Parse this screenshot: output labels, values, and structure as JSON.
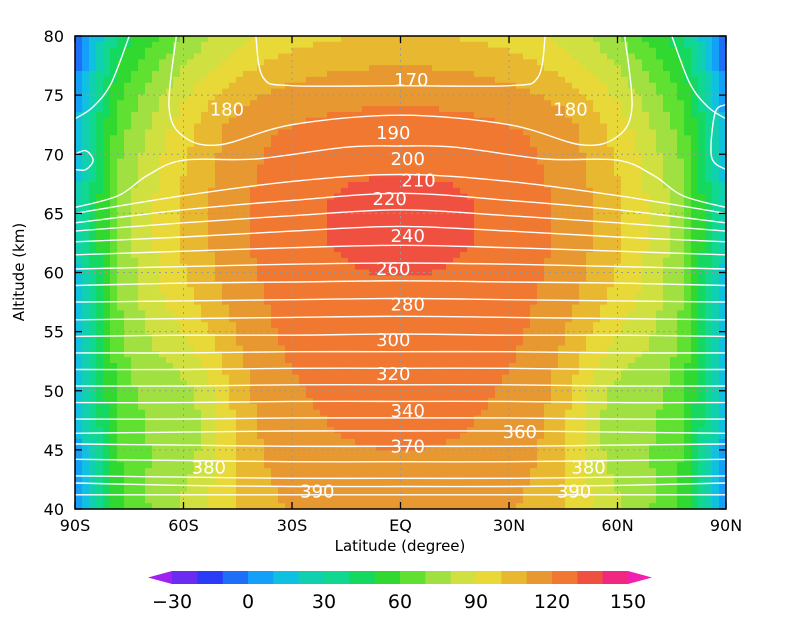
{
  "chart_data": {
    "type": "heatmap",
    "title": "",
    "xlabel": "Latitude (degree)",
    "ylabel": "Altitude (km)",
    "xlim": [
      -90,
      90
    ],
    "ylim": [
      40,
      80
    ],
    "x_ticks": [
      {
        "value": -90,
        "label": "90S"
      },
      {
        "value": -60,
        "label": "60S"
      },
      {
        "value": -30,
        "label": "30S"
      },
      {
        "value": 0,
        "label": "EQ"
      },
      {
        "value": 30,
        "label": "30N"
      },
      {
        "value": 60,
        "label": "60N"
      },
      {
        "value": 90,
        "label": "90N"
      }
    ],
    "y_ticks": [
      {
        "value": 40,
        "label": "40"
      },
      {
        "value": 45,
        "label": "45"
      },
      {
        "value": 50,
        "label": "50"
      },
      {
        "value": 55,
        "label": "55"
      },
      {
        "value": 60,
        "label": "60"
      },
      {
        "value": 65,
        "label": "65"
      },
      {
        "value": 70,
        "label": "70"
      },
      {
        "value": 75,
        "label": "75"
      },
      {
        "value": 80,
        "label": "80"
      }
    ],
    "grid": true,
    "colorbar": {
      "levels": [
        -30,
        -20,
        -10,
        0,
        10,
        20,
        30,
        40,
        50,
        60,
        70,
        80,
        90,
        100,
        110,
        120,
        130,
        140,
        150
      ],
      "colors": [
        "#a020f0",
        "#6a2cf0",
        "#2a3cf8",
        "#1e6ef8",
        "#14a0f8",
        "#10c0e0",
        "#10d0b0",
        "#10d890",
        "#14d860",
        "#30d830",
        "#60e030",
        "#a0e040",
        "#d0e040",
        "#e8d838",
        "#e8b830",
        "#e89830",
        "#f07830",
        "#f05040",
        "#f02880",
        "#f020b0"
      ],
      "tick_labels": [
        {
          "value": -30,
          "label": "−30"
        },
        {
          "value": 0,
          "label": "0"
        },
        {
          "value": 30,
          "label": "30"
        },
        {
          "value": 60,
          "label": "60"
        },
        {
          "value": 90,
          "label": "90"
        },
        {
          "value": 120,
          "label": "120"
        },
        {
          "value": 150,
          "label": "150"
        }
      ],
      "placement": "bottom"
    },
    "contour_lines": {
      "color": "#ffffff",
      "series": [
        {
          "level": 170,
          "label": "170",
          "points": [
            [
              -40,
              80
            ],
            [
              -38,
              76.5
            ],
            [
              -30,
              75.8
            ],
            [
              0,
              75.8
            ],
            [
              30,
              75.8
            ],
            [
              38,
              76.5
            ],
            [
              40,
              80
            ]
          ]
        },
        {
          "level": 180,
          "label": "180",
          "points": [
            [
              -62,
              80
            ],
            [
              -64,
              74
            ],
            [
              -60,
              71.5
            ],
            [
              -50,
              70.8
            ],
            [
              -30,
              72.5
            ],
            [
              0,
              73.3
            ],
            [
              30,
              72.5
            ],
            [
              50,
              70.8
            ],
            [
              60,
              71.5
            ],
            [
              64,
              74
            ],
            [
              62,
              80
            ]
          ]
        },
        {
          "level": 190,
          "label": "190",
          "points": [
            [
              -90,
              70
            ],
            [
              -87,
              70.3
            ],
            [
              -85,
              69.5
            ],
            [
              -87,
              68.7
            ],
            [
              -90,
              68.7
            ]
          ]
        },
        {
          "level": 190,
          "label": "",
          "points": [
            [
              -90,
              65.5
            ],
            [
              -78,
              66.5
            ],
            [
              -70,
              68.2
            ],
            [
              -60,
              69.5
            ],
            [
              -40,
              69.6
            ],
            [
              -15,
              70.6
            ],
            [
              0,
              70.7
            ],
            [
              15,
              70.6
            ],
            [
              40,
              69.6
            ],
            [
              60,
              69.5
            ],
            [
              70,
              68.2
            ],
            [
              78,
              66.5
            ],
            [
              90,
              65.5
            ]
          ]
        },
        {
          "level": 190,
          "label": "",
          "points": [
            [
              90,
              68.7
            ],
            [
              86,
              69.8
            ],
            [
              87,
              73.5
            ],
            [
              90,
              74.2
            ]
          ]
        },
        {
          "level": 195,
          "label": "",
          "points": [
            [
              -75,
              80
            ],
            [
              -80,
              76
            ],
            [
              -85,
              74
            ],
            [
              -90,
              73
            ]
          ]
        },
        {
          "level": 195,
          "label": "",
          "points": [
            [
              75,
              80
            ],
            [
              80,
              76
            ],
            [
              85,
              74
            ],
            [
              90,
              73
            ]
          ]
        },
        {
          "level": 200,
          "label": "200",
          "points": [
            [
              -90,
              65
            ],
            [
              -60,
              66.5
            ],
            [
              -30,
              67.7
            ],
            [
              0,
              68.3
            ],
            [
              30,
              67.7
            ],
            [
              60,
              66.5
            ],
            [
              90,
              65
            ]
          ]
        },
        {
          "level": 210,
          "label": "210",
          "points": [
            [
              -90,
              64.2
            ],
            [
              -60,
              65.3
            ],
            [
              -30,
              66.1
            ],
            [
              0,
              66.7
            ],
            [
              30,
              66.1
            ],
            [
              60,
              65.3
            ],
            [
              90,
              64.2
            ]
          ]
        },
        {
          "level": 220,
          "label": "220",
          "points": [
            [
              -90,
              63.5
            ],
            [
              -60,
              64.2
            ],
            [
              -30,
              64.8
            ],
            [
              0,
              65.3
            ],
            [
              30,
              64.8
            ],
            [
              60,
              64.2
            ],
            [
              90,
              63.5
            ]
          ]
        },
        {
          "level": 230,
          "label": "",
          "points": [
            [
              -90,
              62.6
            ],
            [
              -60,
              63
            ],
            [
              -30,
              63.5
            ],
            [
              0,
              63.9
            ],
            [
              30,
              63.5
            ],
            [
              60,
              63
            ],
            [
              90,
              62.6
            ]
          ]
        },
        {
          "level": 240,
          "label": "240",
          "points": [
            [
              -90,
              61.5
            ],
            [
              -60,
              61.8
            ],
            [
              -30,
              62.1
            ],
            [
              0,
              62.3
            ],
            [
              30,
              62.1
            ],
            [
              60,
              61.8
            ],
            [
              90,
              61.5
            ]
          ]
        },
        {
          "level": 250,
          "label": "",
          "points": [
            [
              -90,
              60.3
            ],
            [
              -60,
              60.5
            ],
            [
              -30,
              60.7
            ],
            [
              0,
              60.8
            ],
            [
              30,
              60.7
            ],
            [
              60,
              60.5
            ],
            [
              90,
              60.3
            ]
          ]
        },
        {
          "level": 260,
          "label": "260",
          "points": [
            [
              -90,
              58.9
            ],
            [
              -60,
              59.1
            ],
            [
              -30,
              59.2
            ],
            [
              0,
              59.3
            ],
            [
              30,
              59.2
            ],
            [
              60,
              59.1
            ],
            [
              90,
              58.9
            ]
          ]
        },
        {
          "level": 270,
          "label": "",
          "points": [
            [
              -90,
              57.5
            ],
            [
              -60,
              57.6
            ],
            [
              -30,
              57.7
            ],
            [
              0,
              57.8
            ],
            [
              30,
              57.7
            ],
            [
              60,
              57.6
            ],
            [
              90,
              57.5
            ]
          ]
        },
        {
          "level": 280,
          "label": "280",
          "points": [
            [
              -90,
              56.0
            ],
            [
              -60,
              56.1
            ],
            [
              -30,
              56.2
            ],
            [
              0,
              56.3
            ],
            [
              30,
              56.2
            ],
            [
              60,
              56.1
            ],
            [
              90,
              56.0
            ]
          ]
        },
        {
          "level": 290,
          "label": "",
          "points": [
            [
              -90,
              54.6
            ],
            [
              -60,
              54.7
            ],
            [
              -30,
              54.7
            ],
            [
              0,
              54.8
            ],
            [
              30,
              54.7
            ],
            [
              60,
              54.7
            ],
            [
              90,
              54.6
            ]
          ]
        },
        {
          "level": 300,
          "label": "300",
          "points": [
            [
              -90,
              53.2
            ],
            [
              -60,
              53.2
            ],
            [
              -30,
              53.3
            ],
            [
              0,
              53.3
            ],
            [
              30,
              53.3
            ],
            [
              60,
              53.2
            ],
            [
              90,
              53.2
            ]
          ]
        },
        {
          "level": 310,
          "label": "",
          "points": [
            [
              -90,
              51.8
            ],
            [
              -60,
              51.8
            ],
            [
              -30,
              51.9
            ],
            [
              0,
              51.9
            ],
            [
              30,
              51.9
            ],
            [
              60,
              51.8
            ],
            [
              90,
              51.8
            ]
          ]
        },
        {
          "level": 320,
          "label": "320",
          "points": [
            [
              -90,
              50.4
            ],
            [
              -60,
              50.4
            ],
            [
              -30,
              50.5
            ],
            [
              0,
              50.5
            ],
            [
              30,
              50.5
            ],
            [
              60,
              50.4
            ],
            [
              90,
              50.4
            ]
          ]
        },
        {
          "level": 330,
          "label": "",
          "points": [
            [
              -90,
              49.0
            ],
            [
              -60,
              49.0
            ],
            [
              -30,
              49.1
            ],
            [
              0,
              49.1
            ],
            [
              30,
              49.1
            ],
            [
              60,
              49.0
            ],
            [
              90,
              49.0
            ]
          ]
        },
        {
          "level": 340,
          "label": "340",
          "points": [
            [
              -90,
              47.6
            ],
            [
              -60,
              47.6
            ],
            [
              -30,
              47.7
            ],
            [
              0,
              47.7
            ],
            [
              30,
              47.7
            ],
            [
              60,
              47.6
            ],
            [
              90,
              47.6
            ]
          ]
        },
        {
          "level": 350,
          "label": "",
          "points": [
            [
              -90,
              46.4
            ],
            [
              -60,
              46.5
            ],
            [
              -30,
              46.6
            ],
            [
              0,
              46.6
            ],
            [
              30,
              46.6
            ],
            [
              60,
              46.5
            ],
            [
              90,
              46.4
            ]
          ]
        },
        {
          "level": 360,
          "label": "360",
          "points": [
            [
              -90,
              45.5
            ],
            [
              -60,
              45.4
            ],
            [
              -30,
              45.3
            ],
            [
              0,
              45.3
            ],
            [
              30,
              45.3
            ],
            [
              60,
              45.4
            ],
            [
              90,
              45.5
            ]
          ]
        },
        {
          "level": 370,
          "label": "370",
          "points": [
            [
              -90,
              44.2
            ],
            [
              -60,
              44.1
            ],
            [
              -30,
              44.0
            ],
            [
              0,
              44.0
            ],
            [
              30,
              44.0
            ],
            [
              60,
              44.1
            ],
            [
              90,
              44.2
            ]
          ]
        },
        {
          "level": 380,
          "label": "380",
          "points": [
            [
              -90,
              42.8
            ],
            [
              -60,
              42.7
            ],
            [
              -30,
              42.6
            ],
            [
              0,
              42.6
            ],
            [
              30,
              42.6
            ],
            [
              60,
              42.7
            ],
            [
              90,
              42.8
            ]
          ]
        },
        {
          "level": 385,
          "label": "",
          "points": [
            [
              -90,
              42.2
            ],
            [
              -60,
              42.0
            ],
            [
              -30,
              41.9
            ],
            [
              0,
              41.9
            ],
            [
              30,
              41.9
            ],
            [
              60,
              42.0
            ],
            [
              90,
              42.2
            ]
          ]
        },
        {
          "level": 390,
          "label": "390",
          "points": [
            [
              -90,
              41.2
            ],
            [
              -60,
              41.2
            ],
            [
              -30,
              41.2
            ],
            [
              0,
              41.2
            ],
            [
              30,
              41.2
            ],
            [
              60,
              41.2
            ],
            [
              90,
              41.2
            ]
          ]
        }
      ],
      "labels": [
        {
          "text": "170",
          "x": 3,
          "y": 76.3
        },
        {
          "text": "180",
          "x": -48,
          "y": 73.8
        },
        {
          "text": "180",
          "x": 47,
          "y": 73.8
        },
        {
          "text": "190",
          "x": -2,
          "y": 71.8
        },
        {
          "text": "200",
          "x": 2,
          "y": 69.6
        },
        {
          "text": "210",
          "x": 5,
          "y": 67.8
        },
        {
          "text": "220",
          "x": -3,
          "y": 66.2
        },
        {
          "text": "240",
          "x": 2,
          "y": 63.1
        },
        {
          "text": "260",
          "x": -2,
          "y": 60.3
        },
        {
          "text": "280",
          "x": 2,
          "y": 57.3
        },
        {
          "text": "300",
          "x": -2,
          "y": 54.3
        },
        {
          "text": "320",
          "x": -2,
          "y": 51.4
        },
        {
          "text": "340",
          "x": 2,
          "y": 48.3
        },
        {
          "text": "360",
          "x": 33,
          "y": 46.5
        },
        {
          "text": "370",
          "x": 2,
          "y": 45.3
        },
        {
          "text": "380",
          "x": -53,
          "y": 43.5
        },
        {
          "text": "380",
          "x": 52,
          "y": 43.5
        },
        {
          "text": "390",
          "x": -23,
          "y": 41.5
        },
        {
          "text": "390",
          "x": 48,
          "y": 41.5
        }
      ]
    }
  }
}
